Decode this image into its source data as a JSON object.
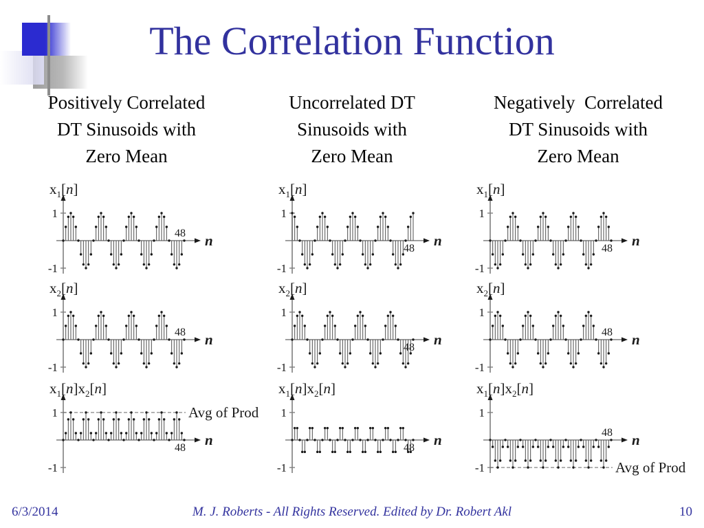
{
  "slide": {
    "title": "The Correlation Function",
    "accent_color": "#32329e",
    "decoration": {
      "blue": "#2b2bd0",
      "gray": "#9c9c9c",
      "lavender": "#d9d9f0"
    },
    "footer": {
      "date": "6/3/2014",
      "credit": "M. J. Roberts - All Rights Reserved. Edited by Dr. Robert Akl",
      "page": "10"
    }
  },
  "columns": [
    {
      "key": "positive",
      "heading_lines": [
        "Positively Correlated",
        "DT Sinusoids with",
        "Zero Mean"
      ]
    },
    {
      "key": "uncorrelated",
      "heading_lines": [
        "Uncorrelated DT",
        "Sinusoids with",
        "Zero Mean"
      ]
    },
    {
      "key": "negative",
      "heading_lines": [
        "Negatively  Correlated",
        "DT Sinusoids with",
        "Zero Mean"
      ]
    }
  ],
  "chart_data": {
    "type": "stem",
    "n_range": [
      0,
      48
    ],
    "ylim": [
      -1,
      1
    ],
    "ytick_labels": [
      "1",
      "-1"
    ],
    "x_end_tick_label": "48",
    "xlabel": "n",
    "ink_color": "#1a1a1a",
    "stem_color": "#4d4d4d",
    "axis_color": "#7f7f7f",
    "plots": [
      {
        "id": "positive-x1",
        "column": 0,
        "row": 0,
        "signal": "sin(2*pi*n/12)",
        "label_parts": [
          {
            "t": "x"
          },
          {
            "t": "1",
            "sub": true
          },
          {
            "t": "["
          },
          {
            "t": "n",
            "italic": true
          },
          {
            "t": "]"
          }
        ],
        "period_values": [
          0,
          0.5,
          0.866,
          1,
          0.866,
          0.5,
          0,
          -0.5,
          -0.866,
          -1,
          -0.866,
          -0.5
        ],
        "x_end_label_side": "above"
      },
      {
        "id": "positive-x2",
        "column": 0,
        "row": 1,
        "signal": "sin(2*pi*n/12)",
        "label_parts": [
          {
            "t": "x"
          },
          {
            "t": "2",
            "sub": true
          },
          {
            "t": "["
          },
          {
            "t": "n",
            "italic": true
          },
          {
            "t": "]"
          }
        ],
        "period_values": [
          0,
          0.5,
          0.866,
          1,
          0.866,
          0.5,
          0,
          -0.5,
          -0.866,
          -1,
          -0.866,
          -0.5
        ],
        "x_end_label_side": "above"
      },
      {
        "id": "positive-product",
        "column": 0,
        "row": 2,
        "signal": "sin^2(2*pi*n/12)",
        "label_parts": [
          {
            "t": "x"
          },
          {
            "t": "1",
            "sub": true
          },
          {
            "t": "["
          },
          {
            "t": "n",
            "italic": true
          },
          {
            "t": "]"
          },
          {
            "t": "x"
          },
          {
            "t": "2",
            "sub": true
          },
          {
            "t": "["
          },
          {
            "t": "n",
            "italic": true
          },
          {
            "t": "]"
          }
        ],
        "period_values": [
          0,
          0.25,
          0.75,
          1,
          0.75,
          0.25
        ],
        "x_end_label_side": "below",
        "avg_line": 0.5,
        "avg_label": "Avg of Prod"
      },
      {
        "id": "uncorrelated-x1",
        "column": 1,
        "row": 0,
        "signal": "cos(2*pi*n/12)",
        "label_parts": [
          {
            "t": "x"
          },
          {
            "t": "1",
            "sub": true
          },
          {
            "t": "["
          },
          {
            "t": "n",
            "italic": true
          },
          {
            "t": "]"
          }
        ],
        "period_values": [
          1,
          0.866,
          0.5,
          0,
          -0.5,
          -0.866,
          -1,
          -0.866,
          -0.5,
          0,
          0.5,
          0.866
        ],
        "x_end_label_side": "below"
      },
      {
        "id": "uncorrelated-x2",
        "column": 1,
        "row": 1,
        "signal": "sin(2*pi*n/12)",
        "label_parts": [
          {
            "t": "x"
          },
          {
            "t": "2",
            "sub": true
          },
          {
            "t": "["
          },
          {
            "t": "n",
            "italic": true
          },
          {
            "t": "]"
          }
        ],
        "period_values": [
          0,
          0.5,
          0.866,
          1,
          0.866,
          0.5,
          0,
          -0.5,
          -0.866,
          -1,
          -0.866,
          -0.5
        ],
        "x_end_label_side": "below"
      },
      {
        "id": "uncorrelated-product",
        "column": 1,
        "row": 2,
        "signal": "0.5*sin(2*pi*n/6)",
        "label_parts": [
          {
            "t": "x"
          },
          {
            "t": "1",
            "sub": true
          },
          {
            "t": "["
          },
          {
            "t": "n",
            "italic": true
          },
          {
            "t": "]"
          },
          {
            "t": "x"
          },
          {
            "t": "2",
            "sub": true
          },
          {
            "t": "["
          },
          {
            "t": "n",
            "italic": true
          },
          {
            "t": "]"
          }
        ],
        "period_values": [
          0,
          0.433,
          0.433,
          0,
          -0.433,
          -0.433
        ],
        "x_end_label_side": "below"
      },
      {
        "id": "negative-x1",
        "column": 2,
        "row": 0,
        "signal": "-sin(2*pi*n/12)",
        "label_parts": [
          {
            "t": "x"
          },
          {
            "t": "1",
            "sub": true
          },
          {
            "t": "["
          },
          {
            "t": "n",
            "italic": true
          },
          {
            "t": "]"
          }
        ],
        "period_values": [
          0,
          -0.5,
          -0.866,
          -1,
          -0.866,
          -0.5,
          0,
          0.5,
          0.866,
          1,
          0.866,
          0.5
        ],
        "x_end_label_side": "below"
      },
      {
        "id": "negative-x2",
        "column": 2,
        "row": 1,
        "signal": "sin(2*pi*n/12)",
        "label_parts": [
          {
            "t": "x"
          },
          {
            "t": "2",
            "sub": true
          },
          {
            "t": "["
          },
          {
            "t": "n",
            "italic": true
          },
          {
            "t": "]"
          }
        ],
        "period_values": [
          0,
          0.5,
          0.866,
          1,
          0.866,
          0.5,
          0,
          -0.5,
          -0.866,
          -1,
          -0.866,
          -0.5
        ],
        "x_end_label_side": "above"
      },
      {
        "id": "negative-product",
        "column": 2,
        "row": 2,
        "signal": "-sin^2(2*pi*n/12)",
        "label_parts": [
          {
            "t": "x"
          },
          {
            "t": "1",
            "sub": true
          },
          {
            "t": "["
          },
          {
            "t": "n",
            "italic": true
          },
          {
            "t": "]"
          },
          {
            "t": "x"
          },
          {
            "t": "2",
            "sub": true
          },
          {
            "t": "["
          },
          {
            "t": "n",
            "italic": true
          },
          {
            "t": "]"
          }
        ],
        "period_values": [
          0,
          -0.25,
          -0.75,
          -1,
          -0.75,
          -0.25
        ],
        "x_end_label_side": "above",
        "avg_line": -0.5,
        "avg_label": "Avg of Prod"
      }
    ]
  }
}
